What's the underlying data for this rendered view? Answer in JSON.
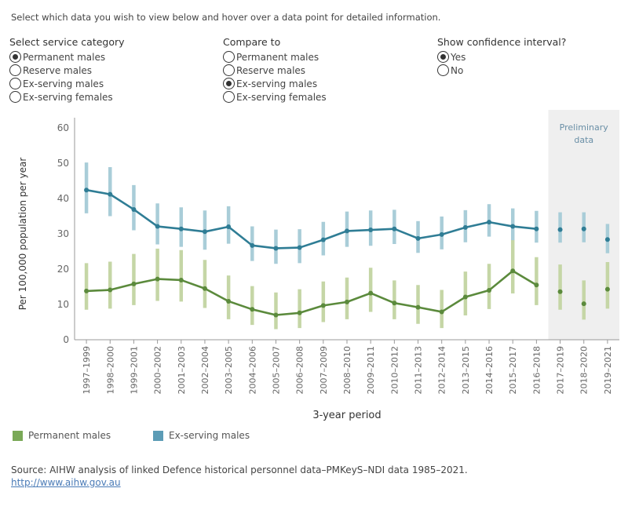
{
  "instructions": "Select which data you wish to view below and hover over a data point for detailed information.",
  "controls": [
    {
      "title": "Select service category",
      "options": [
        {
          "label": "Permanent males",
          "selected": true
        },
        {
          "label": "Reserve males",
          "selected": false
        },
        {
          "label": "Ex-serving males",
          "selected": false
        },
        {
          "label": "Ex-serving females",
          "selected": false
        }
      ]
    },
    {
      "title": "Compare to",
      "options": [
        {
          "label": "Permanent males",
          "selected": false
        },
        {
          "label": "Reserve males",
          "selected": false
        },
        {
          "label": "Ex-serving males",
          "selected": true
        },
        {
          "label": "Ex-serving females",
          "selected": false
        }
      ]
    },
    {
      "title": "Show confidence interval?",
      "options": [
        {
          "label": "Yes",
          "selected": true
        },
        {
          "label": "No",
          "selected": false
        }
      ]
    }
  ],
  "chart_data": {
    "type": "line",
    "title": "",
    "xlabel": "3-year period",
    "ylabel": "Per 100,000 population per year",
    "ylim": [
      0,
      60
    ],
    "yticks": [
      0,
      10,
      20,
      30,
      40,
      50,
      60
    ],
    "grid": false,
    "shaded_region_label": "Preliminary data",
    "preliminary_from": "2017–2019",
    "categories": [
      "1997–1999",
      "1998–2000",
      "1999–2001",
      "2000–2002",
      "2001–2003",
      "2002–2004",
      "2003–2005",
      "2004–2006",
      "2005–2007",
      "2006–2008",
      "2007–2009",
      "2008–2010",
      "2009–2011",
      "2010–2012",
      "2011–2013",
      "2012–2014",
      "2013–2015",
      "2014–2016",
      "2015–2017",
      "2016–2018",
      "2017–2019",
      "2018–2020",
      "2019–2021"
    ],
    "series": [
      {
        "name": "Permanent males",
        "color": "#5b8a3c",
        "ci_color": "#c5d6a6",
        "values": [
          13.8,
          14.1,
          15.8,
          17.2,
          16.9,
          14.5,
          10.9,
          8.6,
          7.0,
          7.6,
          9.7,
          10.7,
          13.2,
          10.4,
          9.2,
          7.9,
          12.1,
          14.0,
          19.5,
          15.5,
          13.6,
          10.2,
          14.3
        ],
        "lower": [
          8.5,
          8.8,
          9.8,
          11.0,
          10.8,
          9.0,
          5.8,
          4.2,
          3.0,
          3.3,
          5.0,
          5.8,
          7.9,
          5.8,
          4.5,
          3.3,
          6.9,
          8.7,
          13.1,
          9.8,
          8.5,
          5.7,
          8.8
        ],
        "upper": [
          21.7,
          22.1,
          24.3,
          25.8,
          25.4,
          22.6,
          18.2,
          15.2,
          13.4,
          14.3,
          16.5,
          17.6,
          20.4,
          16.8,
          15.5,
          14.1,
          19.3,
          21.5,
          28.4,
          23.4,
          21.3,
          16.8,
          22.0
        ]
      },
      {
        "name": "Ex-serving males",
        "color": "#2f7d95",
        "ci_color": "#a9cdd8",
        "values": [
          42.4,
          41.2,
          36.9,
          32.1,
          31.4,
          30.6,
          32.0,
          26.7,
          25.9,
          26.1,
          28.3,
          30.8,
          31.1,
          31.4,
          28.7,
          29.8,
          31.8,
          33.3,
          32.1,
          31.4,
          31.2,
          31.4,
          28.4
        ],
        "lower": [
          35.8,
          35.0,
          31.0,
          27.0,
          26.3,
          25.5,
          27.2,
          22.3,
          21.5,
          21.7,
          23.9,
          26.3,
          26.6,
          27.1,
          24.6,
          25.6,
          27.6,
          29.2,
          28.2,
          27.5,
          27.5,
          27.6,
          24.5
        ],
        "upper": [
          50.2,
          48.9,
          43.8,
          38.6,
          37.5,
          36.6,
          37.8,
          32.1,
          31.2,
          31.3,
          33.4,
          36.3,
          36.6,
          36.8,
          33.6,
          34.9,
          36.7,
          38.4,
          37.2,
          36.5,
          36.1,
          36.1,
          32.8
        ]
      }
    ]
  },
  "legend": [
    {
      "label": "Permanent males",
      "color": "#7aa957"
    },
    {
      "label": "Ex-serving males",
      "color": "#5c9cb6"
    }
  ],
  "source": "Source: AIHW analysis of linked Defence historical personnel data–PMKeyS–NDI data 1985–2021.",
  "link": "http://www.aihw.gov.au"
}
